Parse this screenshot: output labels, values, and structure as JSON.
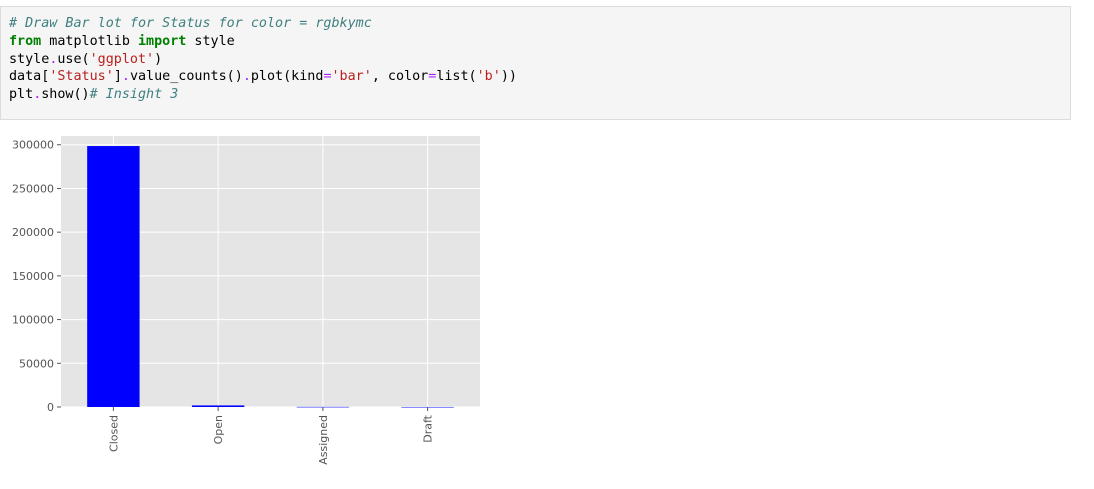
{
  "cell": {
    "lines": [
      [
        {
          "t": "cm",
          "v": "# Draw Bar lot for Status for color = rgbkymc"
        }
      ],
      [
        {
          "t": "kw",
          "v": "from"
        },
        {
          "t": "",
          "v": " matplotlib "
        },
        {
          "t": "kw",
          "v": "import"
        },
        {
          "t": "",
          "v": " style"
        }
      ],
      [
        {
          "t": "",
          "v": "style"
        },
        {
          "t": "op",
          "v": "."
        },
        {
          "t": "",
          "v": "use("
        },
        {
          "t": "str",
          "v": "'ggplot'"
        },
        {
          "t": "",
          "v": ")"
        }
      ],
      [
        {
          "t": "",
          "v": "data["
        },
        {
          "t": "str",
          "v": "'Status'"
        },
        {
          "t": "",
          "v": "]"
        },
        {
          "t": "op",
          "v": "."
        },
        {
          "t": "",
          "v": "value_counts()"
        },
        {
          "t": "op",
          "v": "."
        },
        {
          "t": "",
          "v": "plot(kind"
        },
        {
          "t": "op",
          "v": "="
        },
        {
          "t": "str",
          "v": "'bar'"
        },
        {
          "t": "",
          "v": ", color"
        },
        {
          "t": "op",
          "v": "="
        },
        {
          "t": "",
          "v": "list("
        },
        {
          "t": "str",
          "v": "'b'"
        },
        {
          "t": "",
          "v": "))"
        }
      ],
      [
        {
          "t": "",
          "v": "plt"
        },
        {
          "t": "op",
          "v": "."
        },
        {
          "t": "",
          "v": "show()"
        },
        {
          "t": "cm",
          "v": "# Insight 3"
        }
      ]
    ]
  },
  "colors": {
    "plot_bg": "#e5e5e5",
    "grid": "#ffffff",
    "bar": "#0000ff",
    "tick_text": "#555555",
    "tick_mark": "#555555"
  },
  "chart_data": {
    "type": "bar",
    "categories": [
      "Closed",
      "Open",
      "Assigned",
      "Draft"
    ],
    "values": [
      298500,
      1800,
      150,
      40
    ],
    "ylim": [
      0,
      310000
    ],
    "yticks": [
      0,
      50000,
      100000,
      150000,
      200000,
      250000,
      300000
    ],
    "ytick_labels": [
      "0",
      "50000",
      "100000",
      "150000",
      "200000",
      "250000",
      "300000"
    ],
    "grid": true,
    "style": "ggplot"
  }
}
